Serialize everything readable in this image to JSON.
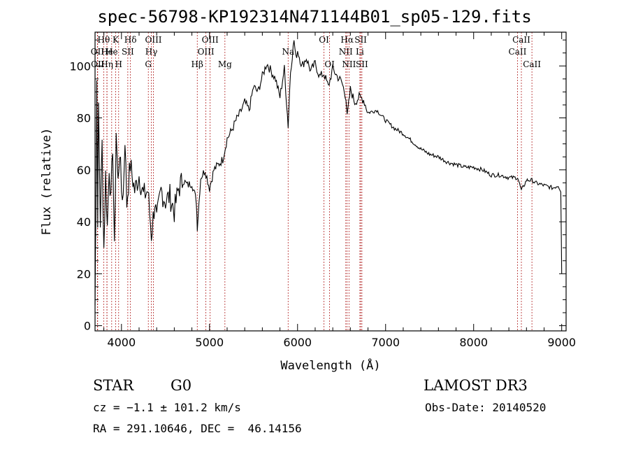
{
  "title": "spec-56798-KP192314N471144B01_sp05-129.fits",
  "footer": {
    "object_class": "STAR",
    "subclass": "G0",
    "survey": "LAMOST DR3",
    "cz": "cz = −1.1 ± 101.2 km/s",
    "obs_date": "Obs-Date: 20140520",
    "coords": "RA = 291.10646, DEC =  46.14156"
  },
  "chart_data": {
    "type": "line",
    "title": "spec-56798-KP192314N471144B01_sp05-129.fits",
    "xlabel": "Wavelength (Å)",
    "ylabel": "Flux (relative)",
    "xlim": [
      3700,
      9050
    ],
    "ylim": [
      -2,
      113
    ],
    "x_ticks": [
      4000,
      5000,
      6000,
      7000,
      8000,
      9000
    ],
    "y_ticks": [
      0,
      20,
      40,
      60,
      80,
      100
    ],
    "grid": false,
    "series": [
      {
        "x": [
          3700,
          3710,
          3720,
          3730,
          3740,
          3760,
          3780,
          3800,
          3820,
          3840,
          3860,
          3880,
          3900,
          3920,
          3940,
          3960,
          3980,
          4000,
          4020,
          4040,
          4060,
          4080,
          4100,
          4150,
          4200,
          4250,
          4300,
          4340,
          4380,
          4400,
          4450,
          4500,
          4550,
          4600,
          4650,
          4700,
          4750,
          4800,
          4850,
          4861,
          4900,
          4950,
          5000,
          5050,
          5100,
          5150,
          5200,
          5250,
          5300,
          5350,
          5400,
          5450,
          5500,
          5550,
          5600,
          5650,
          5700,
          5750,
          5800,
          5850,
          5893,
          5920,
          5960,
          5980,
          6000,
          6050,
          6100,
          6150,
          6200,
          6250,
          6300,
          6350,
          6400,
          6450,
          6500,
          6550,
          6563,
          6600,
          6650,
          6700,
          6750,
          6800,
          6900,
          7000,
          7100,
          7200,
          7300,
          7400,
          7500,
          7600,
          7700,
          7800,
          7900,
          8000,
          8100,
          8200,
          8300,
          8400,
          8500,
          8542,
          8600,
          8662,
          8700,
          8800,
          8900,
          8960,
          8990,
          9000
        ],
        "y": [
          8,
          48,
          95,
          42,
          85,
          40,
          70,
          30,
          58,
          38,
          62,
          47,
          70,
          28,
          75,
          55,
          68,
          52,
          50,
          73,
          47,
          55,
          62,
          52,
          58,
          50,
          52,
          35,
          48,
          40,
          52,
          48,
          50,
          44,
          53,
          56,
          54,
          55,
          48,
          38,
          57,
          60,
          53,
          60,
          62,
          64,
          72,
          75,
          79,
          82,
          86,
          83,
          92,
          90,
          96,
          101,
          98,
          95,
          88,
          99,
          77,
          98,
          110,
          103,
          106,
          100,
          103,
          98,
          101,
          96,
          97,
          92,
          99,
          96,
          94,
          88,
          80,
          91,
          86,
          88,
          87,
          82,
          83,
          79,
          76,
          74,
          71,
          68,
          66,
          65,
          63,
          62,
          61,
          61,
          60,
          58,
          58,
          57,
          57,
          52,
          56,
          56,
          55,
          54,
          53,
          54,
          52,
          20
        ]
      }
    ],
    "lines": [
      {
        "label": "Hθ",
        "x": 3798,
        "row": 1
      },
      {
        "label": "OII",
        "x": 3727,
        "row": 2
      },
      {
        "label": "OII",
        "x": 3730,
        "row": 3
      },
      {
        "label": "He",
        "x": 3835,
        "row": 2
      },
      {
        "label": "Hη",
        "x": 3836,
        "row": 3
      },
      {
        "label": "K",
        "x": 3934,
        "row": 1
      },
      {
        "label": "He",
        "x": 3889,
        "row": 2
      },
      {
        "label": "H",
        "x": 3968,
        "row": 3
      },
      {
        "label": "Hδ",
        "x": 4102,
        "row": 1
      },
      {
        "label": "SII",
        "x": 4072,
        "row": 2
      },
      {
        "label": "OIII",
        "x": 4363,
        "row": 1
      },
      {
        "label": "Hγ",
        "x": 4340,
        "row": 2
      },
      {
        "label": "G",
        "x": 4305,
        "row": 3
      },
      {
        "label": "Hβ",
        "x": 4861,
        "row": 3
      },
      {
        "label": "OIII",
        "x": 5007,
        "row": 1
      },
      {
        "label": "OIII",
        "x": 4959,
        "row": 2
      },
      {
        "label": "Mg",
        "x": 5175,
        "row": 3
      },
      {
        "label": "Na",
        "x": 5893,
        "row": 2
      },
      {
        "label": "OI",
        "x": 6300,
        "row": 1
      },
      {
        "label": "OI",
        "x": 6364,
        "row": 3
      },
      {
        "label": "Hα",
        "x": 6563,
        "row": 1
      },
      {
        "label": "NII",
        "x": 6548,
        "row": 2
      },
      {
        "label": "NII",
        "x": 6584,
        "row": 3
      },
      {
        "label": "SII",
        "x": 6717,
        "row": 1
      },
      {
        "label": "Li",
        "x": 6708,
        "row": 2
      },
      {
        "label": "SII",
        "x": 6731,
        "row": 3
      },
      {
        "label": "CaII",
        "x": 8542,
        "row": 1
      },
      {
        "label": "CaII",
        "x": 8498,
        "row": 2
      },
      {
        "label": "CaII",
        "x": 8662,
        "row": 3
      }
    ]
  }
}
